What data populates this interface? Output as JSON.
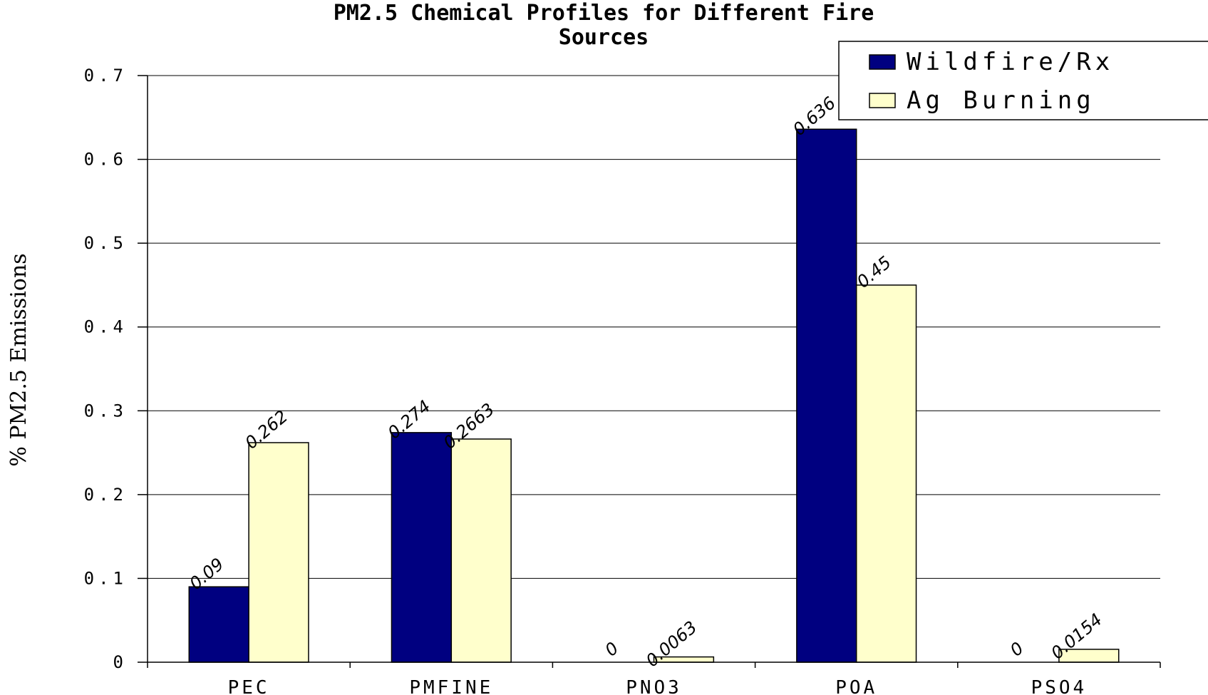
{
  "chart_data": {
    "type": "bar",
    "title_line1": "PM2.5 Chemical Profiles for Different Fire",
    "title_line2": "Sources",
    "ylabel": "% PM2.5 Emissions",
    "ylim": [
      0,
      0.7
    ],
    "yticks": [
      "0",
      "0.1",
      "0.2",
      "0.3",
      "0.4",
      "0.5",
      "0.6",
      "0.7"
    ],
    "categories": [
      "PEC",
      "PMFINE",
      "PNO3",
      "POA",
      "PSO4"
    ],
    "series": [
      {
        "name": "Wildfire/Rx",
        "color": "#000080",
        "values": [
          0.09,
          0.274,
          0,
          0.636,
          0
        ],
        "labels": [
          "0.09",
          "0.274",
          "0",
          "0.636",
          "0"
        ]
      },
      {
        "name": "Ag Burning",
        "color": "#ffffcc",
        "values": [
          0.262,
          0.2663,
          0.0063,
          0.45,
          0.0154
        ],
        "labels": [
          "0.262",
          "0.2663",
          "0.0063",
          "0.45",
          "0.0154"
        ]
      }
    ],
    "grid": true,
    "legend_position": "top-right"
  }
}
